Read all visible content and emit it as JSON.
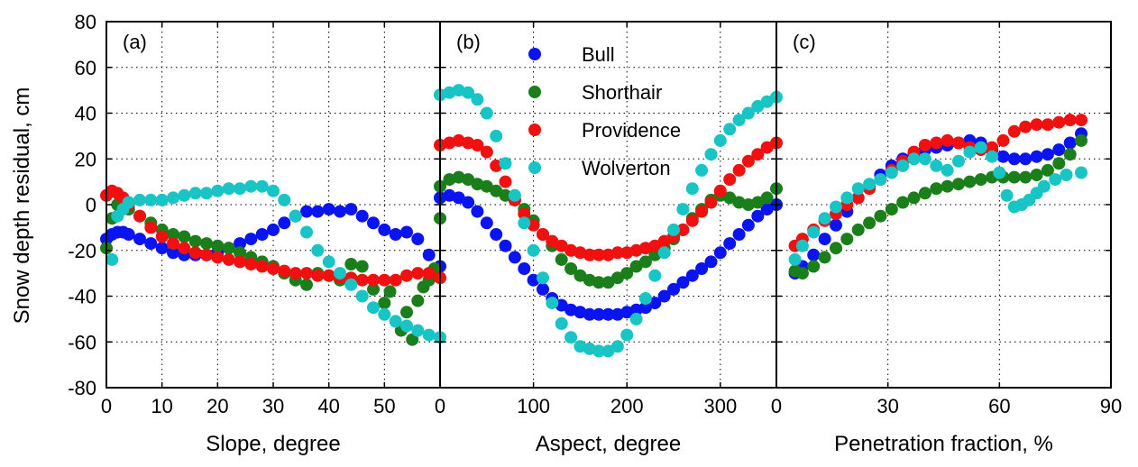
{
  "y_axis": {
    "label": "Snow depth residual, cm",
    "ylim": [
      -80,
      80
    ],
    "ticks": [
      -80,
      -60,
      -40,
      -20,
      0,
      20,
      40,
      60,
      80
    ]
  },
  "colors": {
    "Bull": "#0a14f0",
    "Shorthair": "#1a7f1a",
    "Providence": "#f01010",
    "Wolverton": "#19c4c4"
  },
  "legend": {
    "placement": "top-center of panel (b)",
    "entries": [
      "Bull",
      "Shorthair",
      "Providence",
      "Wolverton"
    ]
  },
  "chart_data": [
    {
      "type": "scatter",
      "panel_label": "(a)",
      "xlabel": "Slope, degree",
      "ylabel": "Snow depth residual, cm",
      "xlim": [
        0,
        60
      ],
      "ylim": [
        -80,
        80
      ],
      "xticks": [
        0,
        10,
        20,
        30,
        40,
        50
      ],
      "grid": true,
      "series": [
        {
          "name": "Bull",
          "x": [
            0,
            1,
            2,
            3,
            4,
            6,
            8,
            10,
            12,
            14,
            16,
            18,
            20,
            22,
            24,
            26,
            28,
            30,
            32,
            34,
            36,
            38,
            40,
            42,
            44,
            46,
            48,
            50,
            52,
            54,
            56,
            58,
            60
          ],
          "y": [
            -15,
            -13,
            -12,
            -12,
            -13,
            -15,
            -17,
            -19,
            -21,
            -22,
            -22,
            -22,
            -21,
            -19,
            -17,
            -15,
            -13,
            -11,
            -8,
            -5,
            -3,
            -3,
            -2,
            -3,
            -2,
            -5,
            -8,
            -11,
            -13,
            -12,
            -15,
            -22,
            -27
          ]
        },
        {
          "name": "Shorthair",
          "x": [
            0,
            1,
            2,
            3,
            4,
            6,
            8,
            10,
            12,
            14,
            16,
            18,
            20,
            22,
            24,
            26,
            28,
            30,
            32,
            34,
            36,
            38,
            40,
            42,
            44,
            46,
            48,
            50,
            51,
            53,
            54,
            55,
            56,
            57,
            58,
            59,
            60
          ],
          "y": [
            -19,
            -6,
            0,
            1,
            -2,
            -5,
            -8,
            -11,
            -13,
            -14,
            -16,
            -17,
            -18,
            -19,
            -21,
            -23,
            -25,
            -27,
            -30,
            -33,
            -35,
            -30,
            -31,
            -33,
            -26,
            -27,
            -37,
            -43,
            -38,
            -55,
            -47,
            -59,
            -42,
            -36,
            -33,
            -28,
            -6
          ]
        },
        {
          "name": "Providence",
          "x": [
            0,
            1,
            2,
            3,
            4,
            6,
            8,
            10,
            12,
            14,
            16,
            18,
            20,
            22,
            24,
            26,
            28,
            30,
            32,
            34,
            36,
            38,
            40,
            42,
            44,
            46,
            48,
            50,
            52,
            54,
            56,
            58,
            60
          ],
          "y": [
            4,
            6,
            5,
            3,
            0,
            -5,
            -10,
            -14,
            -17,
            -19,
            -21,
            -22,
            -23,
            -24,
            -25,
            -26,
            -27,
            -28,
            -29,
            -30,
            -30,
            -31,
            -31,
            -32,
            -32,
            -33,
            -33,
            -33,
            -33,
            -31,
            -30,
            -30,
            -32
          ]
        },
        {
          "name": "Wolverton",
          "x": [
            1,
            2,
            3,
            4,
            6,
            8,
            10,
            12,
            14,
            16,
            18,
            20,
            22,
            24,
            26,
            28,
            30,
            32,
            34,
            36,
            38,
            40,
            42,
            44,
            46,
            48,
            50,
            52,
            54,
            56,
            58,
            60
          ],
          "y": [
            -24,
            -5,
            -2,
            1,
            2,
            2,
            2,
            3,
            4,
            5,
            5,
            6,
            7,
            7,
            8,
            8,
            6,
            2,
            -5,
            -12,
            -20,
            -25,
            -30,
            -35,
            -40,
            -45,
            -48,
            -51,
            -53,
            -55,
            -57,
            -58
          ]
        }
      ]
    },
    {
      "type": "scatter",
      "panel_label": "(b)",
      "xlabel": "Aspect, degree",
      "ylabel": "Snow depth residual, cm",
      "xlim": [
        0,
        360
      ],
      "ylim": [
        -80,
        80
      ],
      "xticks": [
        0,
        100,
        200,
        300
      ],
      "grid": true,
      "series": [
        {
          "name": "Bull",
          "x": [
            0,
            10,
            20,
            30,
            40,
            50,
            60,
            70,
            80,
            90,
            100,
            110,
            120,
            130,
            140,
            150,
            160,
            170,
            180,
            190,
            200,
            210,
            220,
            230,
            240,
            250,
            260,
            270,
            280,
            290,
            300,
            310,
            320,
            330,
            340,
            350,
            360
          ],
          "y": [
            3,
            4,
            3,
            1,
            -3,
            -8,
            -13,
            -18,
            -23,
            -28,
            -33,
            -37,
            -41,
            -44,
            -46,
            -47,
            -48,
            -48,
            -48,
            -48,
            -47,
            -46,
            -45,
            -43,
            -40,
            -37,
            -34,
            -31,
            -28,
            -25,
            -21,
            -17,
            -13,
            -9,
            -5,
            -2,
            0
          ]
        },
        {
          "name": "Shorthair",
          "x": [
            0,
            10,
            20,
            30,
            40,
            50,
            60,
            70,
            80,
            90,
            100,
            110,
            120,
            130,
            140,
            150,
            160,
            170,
            180,
            190,
            200,
            210,
            220,
            230,
            240,
            250,
            260,
            270,
            280,
            290,
            300,
            310,
            320,
            330,
            340,
            350,
            360
          ],
          "y": [
            8,
            11,
            12,
            11,
            9,
            8,
            6,
            4,
            2,
            -2,
            -7,
            -13,
            -18,
            -24,
            -28,
            -31,
            -33,
            -34,
            -34,
            -32,
            -30,
            -27,
            -25,
            -22,
            -19,
            -15,
            -11,
            -6,
            -2,
            2,
            4,
            3,
            1,
            0,
            1,
            3,
            7
          ]
        },
        {
          "name": "Providence",
          "x": [
            0,
            10,
            20,
            30,
            40,
            50,
            60,
            70,
            80,
            90,
            100,
            110,
            120,
            130,
            140,
            150,
            160,
            170,
            180,
            190,
            200,
            210,
            220,
            230,
            240,
            250,
            260,
            270,
            280,
            290,
            300,
            310,
            320,
            330,
            340,
            350,
            360
          ],
          "y": [
            26,
            27,
            28,
            27,
            26,
            23,
            17,
            10,
            2,
            -4,
            -9,
            -13,
            -16,
            -18,
            -20,
            -21,
            -22,
            -22,
            -22,
            -21,
            -21,
            -20,
            -19,
            -18,
            -16,
            -14,
            -11,
            -7,
            -3,
            1,
            6,
            11,
            15,
            19,
            22,
            25,
            27
          ]
        },
        {
          "name": "Wolverton",
          "x": [
            0,
            10,
            20,
            30,
            40,
            50,
            60,
            70,
            80,
            90,
            100,
            110,
            120,
            130,
            140,
            150,
            160,
            170,
            180,
            190,
            200,
            210,
            220,
            230,
            240,
            250,
            260,
            270,
            280,
            290,
            300,
            310,
            320,
            330,
            340,
            350,
            360
          ],
          "y": [
            48,
            49,
            50,
            49,
            46,
            40,
            30,
            18,
            4,
            -8,
            -20,
            -32,
            -43,
            -52,
            -58,
            -62,
            -63,
            -64,
            -64,
            -62,
            -57,
            -50,
            -41,
            -31,
            -21,
            -11,
            -2,
            7,
            15,
            22,
            28,
            33,
            37,
            40,
            43,
            45,
            47
          ]
        }
      ]
    },
    {
      "type": "scatter",
      "panel_label": "(c)",
      "xlabel": "Penetration fraction, %",
      "ylabel": "Snow depth residual, cm",
      "xlim": [
        0,
        90
      ],
      "ylim": [
        -80,
        80
      ],
      "xticks": [
        0,
        30,
        60,
        90
      ],
      "grid": true,
      "series": [
        {
          "name": "Bull",
          "x": [
            5,
            7,
            10,
            13,
            16,
            19,
            22,
            25,
            28,
            31,
            34,
            37,
            40,
            43,
            46,
            49,
            52,
            55,
            58,
            61,
            64,
            67,
            70,
            73,
            76,
            79,
            82
          ],
          "y": [
            -30,
            -27,
            -22,
            -15,
            -9,
            -3,
            3,
            8,
            13,
            17,
            20,
            22,
            24,
            25,
            26,
            27,
            28,
            27,
            24,
            21,
            20,
            20,
            21,
            22,
            24,
            27,
            31
          ]
        },
        {
          "name": "Shorthair",
          "x": [
            5,
            7,
            10,
            13,
            16,
            19,
            22,
            25,
            28,
            31,
            34,
            37,
            40,
            43,
            46,
            49,
            52,
            55,
            58,
            61,
            64,
            67,
            70,
            73,
            76,
            79,
            82
          ],
          "y": [
            -29,
            -30,
            -27,
            -23,
            -19,
            -15,
            -11,
            -8,
            -5,
            -2,
            1,
            3,
            5,
            7,
            8,
            9,
            10,
            11,
            12,
            12,
            12,
            12,
            13,
            15,
            18,
            22,
            28
          ]
        },
        {
          "name": "Providence",
          "x": [
            5,
            7,
            10,
            13,
            16,
            19,
            22,
            25,
            28,
            31,
            34,
            37,
            40,
            43,
            46,
            49,
            52,
            55,
            58,
            61,
            64,
            67,
            70,
            73,
            76,
            79,
            82
          ],
          "y": [
            -18,
            -15,
            -11,
            -7,
            -4,
            0,
            3,
            7,
            11,
            15,
            19,
            23,
            26,
            27,
            28,
            27,
            25,
            24,
            25,
            28,
            32,
            34,
            35,
            35,
            36,
            37,
            37
          ]
        },
        {
          "name": "Wolverton",
          "x": [
            5,
            7,
            10,
            13,
            16,
            19,
            22,
            25,
            28,
            31,
            34,
            37,
            40,
            43,
            46,
            49,
            52,
            55,
            58,
            60,
            62,
            64,
            66,
            68,
            70,
            72,
            75,
            78,
            82
          ],
          "y": [
            -24,
            -18,
            -12,
            -6,
            -1,
            3,
            7,
            9,
            11,
            14,
            17,
            20,
            20,
            17,
            15,
            19,
            23,
            25,
            21,
            14,
            4,
            -1,
            0,
            2,
            5,
            8,
            11,
            13,
            14
          ]
        }
      ]
    }
  ]
}
